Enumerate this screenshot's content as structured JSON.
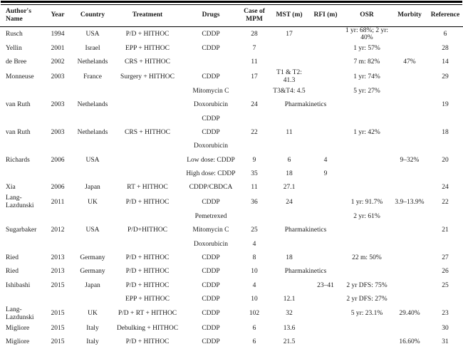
{
  "table": {
    "columns": [
      {
        "key": "author",
        "label": "Author's\nName"
      },
      {
        "key": "year",
        "label": "Year"
      },
      {
        "key": "country",
        "label": "Country"
      },
      {
        "key": "treatment",
        "label": "Treatment"
      },
      {
        "key": "drugs",
        "label": "Drugs"
      },
      {
        "key": "case",
        "label": "Case of\nMPM"
      },
      {
        "key": "mst",
        "label": "MST (m)"
      },
      {
        "key": "rfi",
        "label": "RFI (m)"
      },
      {
        "key": "osr",
        "label": "OSR"
      },
      {
        "key": "morbity",
        "label": "Morbity"
      },
      {
        "key": "reference",
        "label": "Reference"
      }
    ],
    "rows": [
      [
        "Rusch",
        "1994",
        "USA",
        "P/D + HITHOC",
        "CDDP",
        "28",
        "17",
        "",
        "1 yr: 68%; 2 yr: 40%",
        "",
        "6"
      ],
      [
        "Yellin",
        "2001",
        "Israel",
        "EPP + HITHOC",
        "CDDP",
        "7",
        "",
        "",
        "1 yr: 57%",
        "",
        "28"
      ],
      [
        "de Bree",
        "2002",
        "Nethelands",
        "CRS + HITHOC",
        "",
        "11",
        "",
        "",
        "7 m: 82%",
        "47%",
        "14"
      ],
      [
        "Monneuse",
        "2003",
        "France",
        "Surgery + HITHOC",
        "CDDP",
        "17",
        "T1 & T2: 41.3",
        "",
        "1 yr: 74%",
        "",
        "29"
      ],
      [
        "",
        "",
        "",
        "",
        "Mitomycin C",
        "",
        "T3&T4: 4.5",
        "",
        "5 yr: 27%",
        "",
        ""
      ],
      [
        "van Ruth",
        "2003",
        "Nethelands",
        "",
        "Doxorubicin",
        "24",
        {
          "v": "Pharmakinetics",
          "colspan": 2
        },
        "",
        "",
        "19"
      ],
      [
        "",
        "",
        "",
        "",
        "CDDP",
        "",
        "",
        "",
        "",
        "",
        ""
      ],
      [
        "van Ruth",
        "2003",
        "Nethelands",
        "CRS + HITHOC",
        "CDDP",
        "22",
        "11",
        "",
        "1 yr: 42%",
        "",
        "18"
      ],
      [
        "",
        "",
        "",
        "",
        "Doxorubicin",
        "",
        "",
        "",
        "",
        "",
        ""
      ],
      [
        "Richards",
        "2006",
        "USA",
        "",
        "Low dose: CDDP",
        "9",
        "6",
        "4",
        "",
        "9–32%",
        "20"
      ],
      [
        "",
        "",
        "",
        "",
        "High dose: CDDP",
        "35",
        "18",
        "9",
        "",
        "",
        ""
      ],
      [
        "Xia",
        "2006",
        "Japan",
        "RT + HITHOC",
        "CDDP/CBDCA",
        "11",
        "27.1",
        "",
        "",
        "",
        "24"
      ],
      [
        "Lang-Lazdunski",
        "2011",
        "UK",
        "P/D + HITHOC",
        "CDDP",
        "36",
        "24",
        "",
        "1 yr: 91.7%",
        "3.9–13.9%",
        "22"
      ],
      [
        "",
        "",
        "",
        "",
        "Pemetrexed",
        "",
        "",
        "",
        "2 yr: 61%",
        "",
        ""
      ],
      [
        "Sugarbaker",
        "2012",
        "USA",
        "P/D+HITHOC",
        "Mitomycin C",
        "25",
        {
          "v": "Pharmakinetics",
          "colspan": 2
        },
        "",
        "",
        "21"
      ],
      [
        "",
        "",
        "",
        "",
        "Doxorubicin",
        "4",
        "",
        "",
        "",
        "",
        ""
      ],
      [
        "Ried",
        "2013",
        "Germany",
        "P/D + HITHOC",
        "CDDP",
        "8",
        "18",
        "",
        "22 m: 50%",
        "",
        "27"
      ],
      [
        "Ried",
        "2013",
        "Germany",
        "P/D + HITHOC",
        "CDDP",
        "10",
        {
          "v": "Pharmakinetics",
          "colspan": 2
        },
        "",
        "",
        "26"
      ],
      [
        "Ishibashi",
        "2015",
        "Japan",
        "P/D + HITHOC",
        "CDDP",
        "4",
        "",
        "23–41",
        "2 yr DFS: 75%",
        "",
        "25"
      ],
      [
        "",
        "",
        "",
        "EPP + HITHOC",
        "CDDP",
        "10",
        "12.1",
        "",
        "2 yr DFS: 27%",
        "",
        ""
      ],
      [
        "Lang-Lazdunski",
        "2015",
        "UK",
        "P/D + RT + HITHOC",
        "CDDP",
        "102",
        "32",
        "",
        "5 yr: 23.1%",
        "29.40%",
        "23"
      ],
      [
        "Migliore",
        "2015",
        "Italy",
        "Debulking + HITHOC",
        "CDDP",
        "6",
        "13.6",
        "",
        "",
        "",
        "30"
      ],
      [
        "Migliore",
        "2015",
        "Italy",
        "P/D + HITHOC",
        "CDDP",
        "6",
        "21.5",
        "",
        "",
        "16.60%",
        "31"
      ]
    ]
  }
}
